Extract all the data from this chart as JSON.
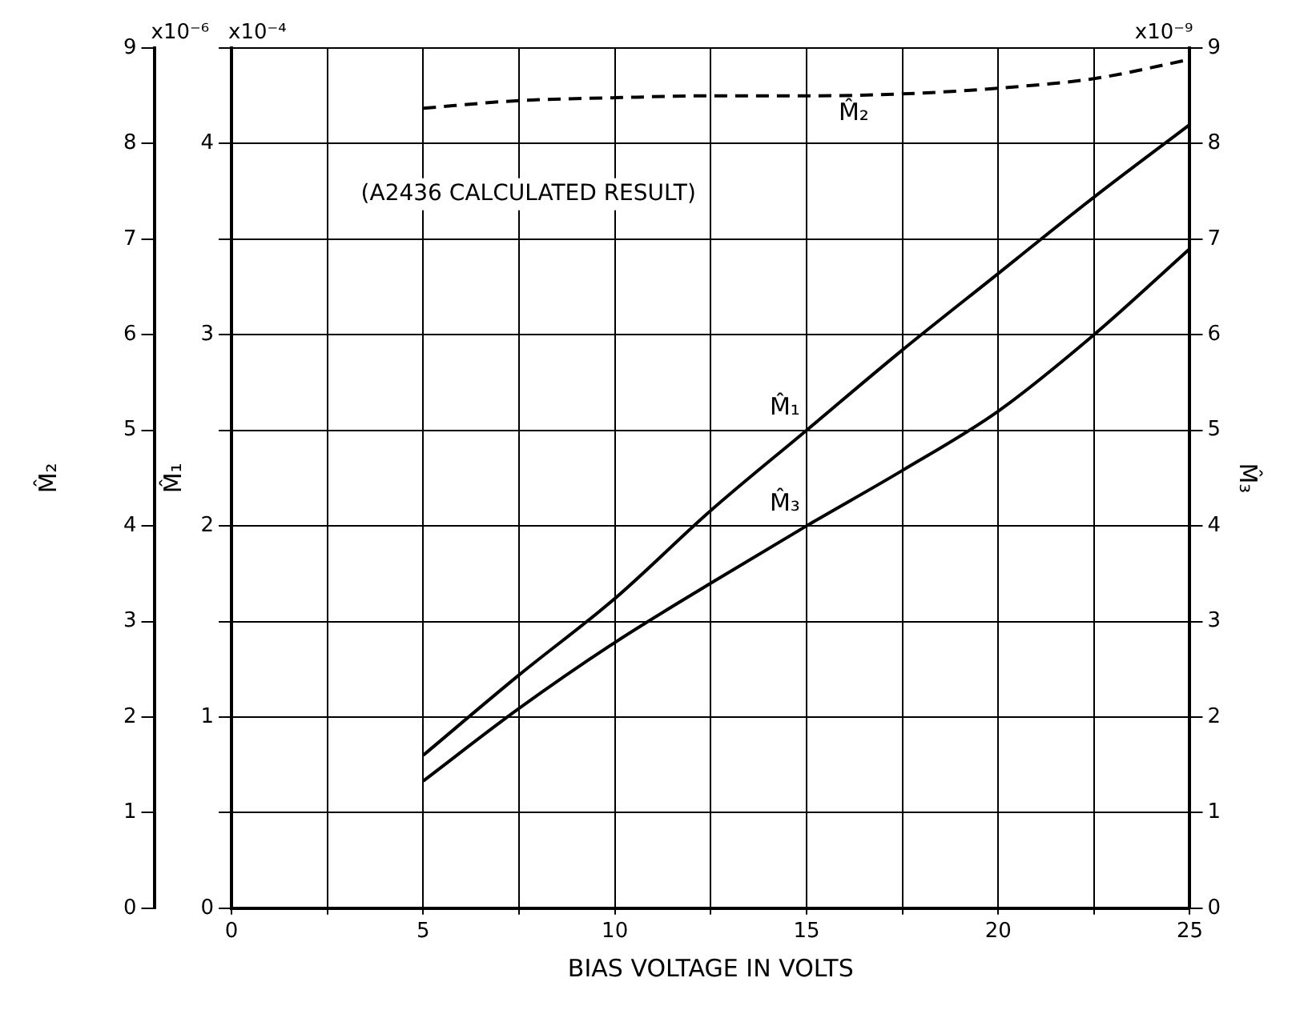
{
  "chart_data": {
    "type": "line",
    "xlabel": "BIAS VOLTAGE IN VOLTS",
    "ylabel": "M̂₁",
    "y2label": "M̂₃",
    "y3label": "M̂₂",
    "annotations": [
      "(A2436 CALCULATED RESULT)",
      "x10⁻⁶",
      "x10⁻⁴",
      "x10⁻⁹"
    ],
    "x": [
      5,
      7.5,
      10,
      12.5,
      15,
      17.5,
      20,
      22.5,
      25
    ],
    "series": [
      {
        "name": "M̂₁",
        "color": "#000000",
        "line_style": "solid",
        "values": [
          0.8,
          1.22,
          1.62,
          2.08,
          2.5,
          2.92,
          3.32,
          3.72,
          4.1
        ]
      },
      {
        "name": "M̂₂",
        "color": "#000000",
        "line_style": "dashed",
        "axis": "y3",
        "values": [
          8.37,
          8.45,
          8.48,
          8.5,
          8.5,
          8.52,
          8.58,
          8.68,
          8.88
        ]
      },
      {
        "name": "M̂₃",
        "color": "#000000",
        "line_style": "solid",
        "axis": "y2",
        "values": [
          1.33,
          2.09,
          2.78,
          3.4,
          4.0,
          4.58,
          5.2,
          6.0,
          6.9
        ]
      }
    ],
    "xlim": [
      0,
      25
    ],
    "xticks": [
      0,
      {
        "value": 2.5,
        "label": null
      },
      5,
      {
        "value": 7.5,
        "label": null
      },
      10,
      {
        "value": 12.5,
        "label": null
      },
      15,
      {
        "value": 17.5,
        "label": null
      },
      20,
      {
        "value": 22.5,
        "label": null
      },
      25
    ],
    "ylim": [
      0,
      4.5
    ],
    "yticks": [
      0,
      {
        "value": 0.5,
        "label": null
      },
      1,
      {
        "value": 1.5,
        "label": null
      },
      2,
      {
        "value": 2.5,
        "label": null
      },
      3,
      {
        "value": 3.5,
        "label": null
      },
      4,
      {
        "value": 4.5,
        "label": null
      }
    ],
    "y2lim": [
      0,
      9
    ],
    "y2ticks": [
      0,
      1,
      2,
      3,
      4,
      5,
      6,
      7,
      8,
      9
    ],
    "y3lim": [
      0,
      9
    ],
    "y3ticks": [
      0,
      1,
      2,
      3,
      4,
      5,
      6,
      7,
      8,
      9
    ],
    "grid": true,
    "legend": false,
    "marker": "none"
  }
}
